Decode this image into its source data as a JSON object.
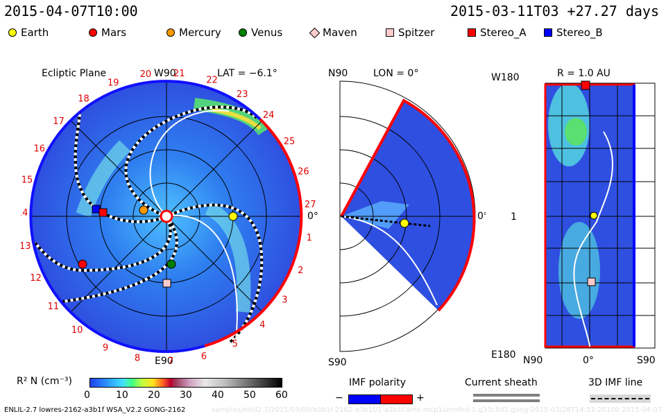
{
  "header": {
    "left_time": "2015-04-07T10:00",
    "right_time": "2015-03-11T03 +27.27 days"
  },
  "legend": {
    "items": [
      {
        "label": "Earth",
        "shape": "circle",
        "color": "#ffff00"
      },
      {
        "label": "Mars",
        "shape": "circle",
        "color": "#ff0000"
      },
      {
        "label": "Mercury",
        "shape": "circle",
        "color": "#ff9900"
      },
      {
        "label": "Venus",
        "shape": "circle",
        "color": "#008000"
      },
      {
        "label": "Maven",
        "shape": "diamond",
        "color": "#ffcccc"
      },
      {
        "label": "Spitzer",
        "shape": "square",
        "color": "#ffcccc"
      },
      {
        "label": "Stereo_A",
        "shape": "square",
        "color": "#ff0000"
      },
      {
        "label": "Stereo_B",
        "shape": "square",
        "color": "#0000ff"
      }
    ]
  },
  "panels": {
    "ecliptic": {
      "title": "Ecliptic Plane",
      "top_label": "W90",
      "bottom_label": "E90",
      "right_label": "0°",
      "lat_label": "LAT = −6.1°",
      "day_ticks": [
        "19",
        "20",
        "21",
        "22",
        "23",
        "24",
        "25",
        "26",
        "27",
        "1",
        "2",
        "3",
        "4",
        "5",
        "6",
        "7",
        "8",
        "9",
        "10",
        "11",
        "12",
        "13",
        "14",
        "15",
        "16",
        "17",
        "18"
      ]
    },
    "meridional": {
      "top_left": "N90",
      "bottom_left": "S90",
      "lon_label": "LON = 0°",
      "right_label": "0°"
    },
    "radial": {
      "r_label": "R = 1.0 AU",
      "top_left": "W180",
      "bottom_left": "E180",
      "mid_left": "1",
      "bottom_axis": [
        "N90",
        "0°",
        "S90"
      ]
    }
  },
  "colorbar": {
    "label": "R² N (cm⁻³)",
    "ticks": [
      "0",
      "10",
      "20",
      "30",
      "40",
      "50",
      "60"
    ]
  },
  "imf": {
    "title": "IMF polarity",
    "minus": "−",
    "plus": "+",
    "current_sheath": "Current sheath",
    "imf_line": "3D IMF line"
  },
  "footer": {
    "model": "ENLIL-2.7 lowres-2162-a3b1f WSA_V2.2 GONG-2162",
    "path_faint": "samples/enlil2.7/2015/03/09/a3b1f-2162-a3b1f/1-a3b1f.ams-mcp1umnfed-1.g33c5d2.gong-2015-03/28T14:51:20100  2015-04-07"
  },
  "colors": {
    "bg_blue": "#2f4fe0",
    "sheath": "#7f7f7f",
    "stereo_a": "#ff0000",
    "stereo_b": "#0000ff"
  }
}
